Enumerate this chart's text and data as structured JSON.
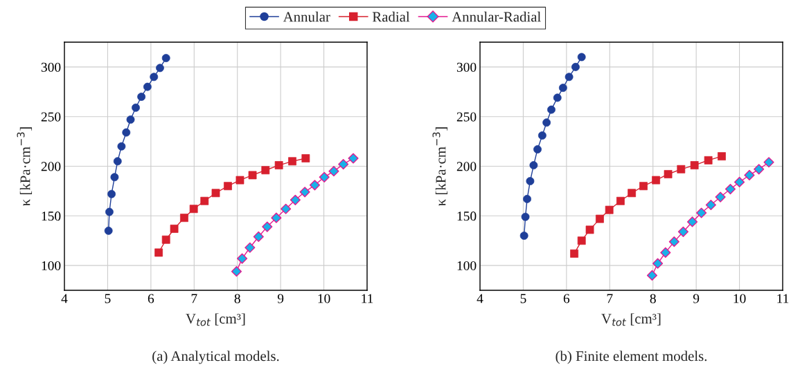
{
  "chart_data": [
    {
      "type": "line",
      "annotations": [
        "(a) Analytical models."
      ],
      "xlabel": "V$_{tot}$ [cm³]",
      "ylabel": "κ [kPa·cm$^{−3}$]",
      "xlim": [
        4,
        11
      ],
      "ylim": [
        75,
        325
      ],
      "xticks": [
        4,
        5,
        6,
        7,
        8,
        9,
        10,
        11
      ],
      "yticks": [
        100,
        150,
        200,
        250,
        300
      ],
      "grid": true,
      "legend": "top",
      "series": [
        {
          "name": "Annular",
          "color": "#1f3f99",
          "marker": "circle",
          "x": [
            5.02,
            5.04,
            5.09,
            5.16,
            5.23,
            5.32,
            5.43,
            5.53,
            5.65,
            5.78,
            5.92,
            6.07,
            6.21,
            6.35
          ],
          "values": [
            135,
            154,
            172,
            189,
            205,
            220,
            234,
            247,
            259,
            270,
            280,
            290,
            299,
            309
          ]
        },
        {
          "name": "Radial",
          "color": "#d7202e",
          "marker": "square",
          "x": [
            6.18,
            6.35,
            6.54,
            6.77,
            6.99,
            7.24,
            7.5,
            7.78,
            8.06,
            8.35,
            8.65,
            8.96,
            9.27,
            9.58
          ],
          "values": [
            113,
            126,
            137,
            148,
            157,
            165,
            173,
            180,
            186,
            191,
            196,
            201,
            205,
            208
          ]
        },
        {
          "name": "Annular-Radial",
          "color": "#e4188f",
          "colors": [
            "#1ab0e8",
            "#1ab0e8",
            "#1ab0e8",
            "#1ab0e8",
            "#1ab0e8",
            "#1ab0e8",
            "#1ab0e8",
            "#1ab0e8",
            "#1ab0e8",
            "#1ab0e8",
            "#1ab0e8",
            "#1ab0e8",
            "#1ab0e8",
            "#1ab0e8"
          ],
          "marker": "diamond",
          "x": [
            7.98,
            8.11,
            8.29,
            8.49,
            8.69,
            8.9,
            9.12,
            9.34,
            9.56,
            9.79,
            10.01,
            10.23,
            10.45,
            10.68
          ],
          "values": [
            94,
            107,
            118,
            129,
            139,
            148,
            157,
            166,
            174,
            181,
            189,
            195,
            202,
            208
          ]
        }
      ]
    },
    {
      "type": "line",
      "annotations": [
        "(b) Finite element models."
      ],
      "xlabel": "V$_{tot}$ [cm³]",
      "ylabel": "κ [kPa·cm$^{−3}$]",
      "xlim": [
        4,
        11
      ],
      "ylim": [
        75,
        325
      ],
      "xticks": [
        4,
        5,
        6,
        7,
        8,
        9,
        10,
        11
      ],
      "yticks": [
        100,
        150,
        200,
        250,
        300
      ],
      "grid": true,
      "series": [
        {
          "color": "#1f3f99",
          "marker": "circle",
          "x": [
            5.02,
            5.05,
            5.09,
            5.16,
            5.24,
            5.33,
            5.44,
            5.54,
            5.65,
            5.79,
            5.92,
            6.06,
            6.21,
            6.35
          ],
          "values": [
            130,
            149,
            167,
            185,
            201,
            217,
            231,
            244,
            257,
            269,
            279,
            290,
            300,
            310
          ]
        },
        {
          "color": "#d7202e",
          "marker": "square",
          "x": [
            6.18,
            6.35,
            6.54,
            6.77,
            6.99,
            7.25,
            7.51,
            7.78,
            8.07,
            8.35,
            8.65,
            8.96,
            9.28,
            9.59
          ],
          "values": [
            112,
            125,
            136,
            147,
            156,
            165,
            173,
            180,
            186,
            192,
            197,
            201,
            206,
            210
          ]
        },
        {
          "color": "#e4188f",
          "colors": [
            "#1ab0e8",
            "#1ab0e8",
            "#1ab0e8",
            "#1ab0e8",
            "#1ab0e8",
            "#1ab0e8",
            "#1ab0e8",
            "#1ab0e8",
            "#1ab0e8",
            "#1ab0e8",
            "#1ab0e8",
            "#1ab0e8",
            "#1ab0e8",
            "#1ab0e8"
          ],
          "marker": "diamond",
          "x": [
            7.98,
            8.11,
            8.29,
            8.49,
            8.7,
            8.91,
            9.12,
            9.34,
            9.56,
            9.79,
            10.0,
            10.23,
            10.45,
            10.68
          ],
          "values": [
            90,
            102,
            113,
            124,
            134,
            144,
            153,
            161,
            169,
            177,
            184,
            191,
            197,
            204
          ]
        }
      ]
    }
  ]
}
